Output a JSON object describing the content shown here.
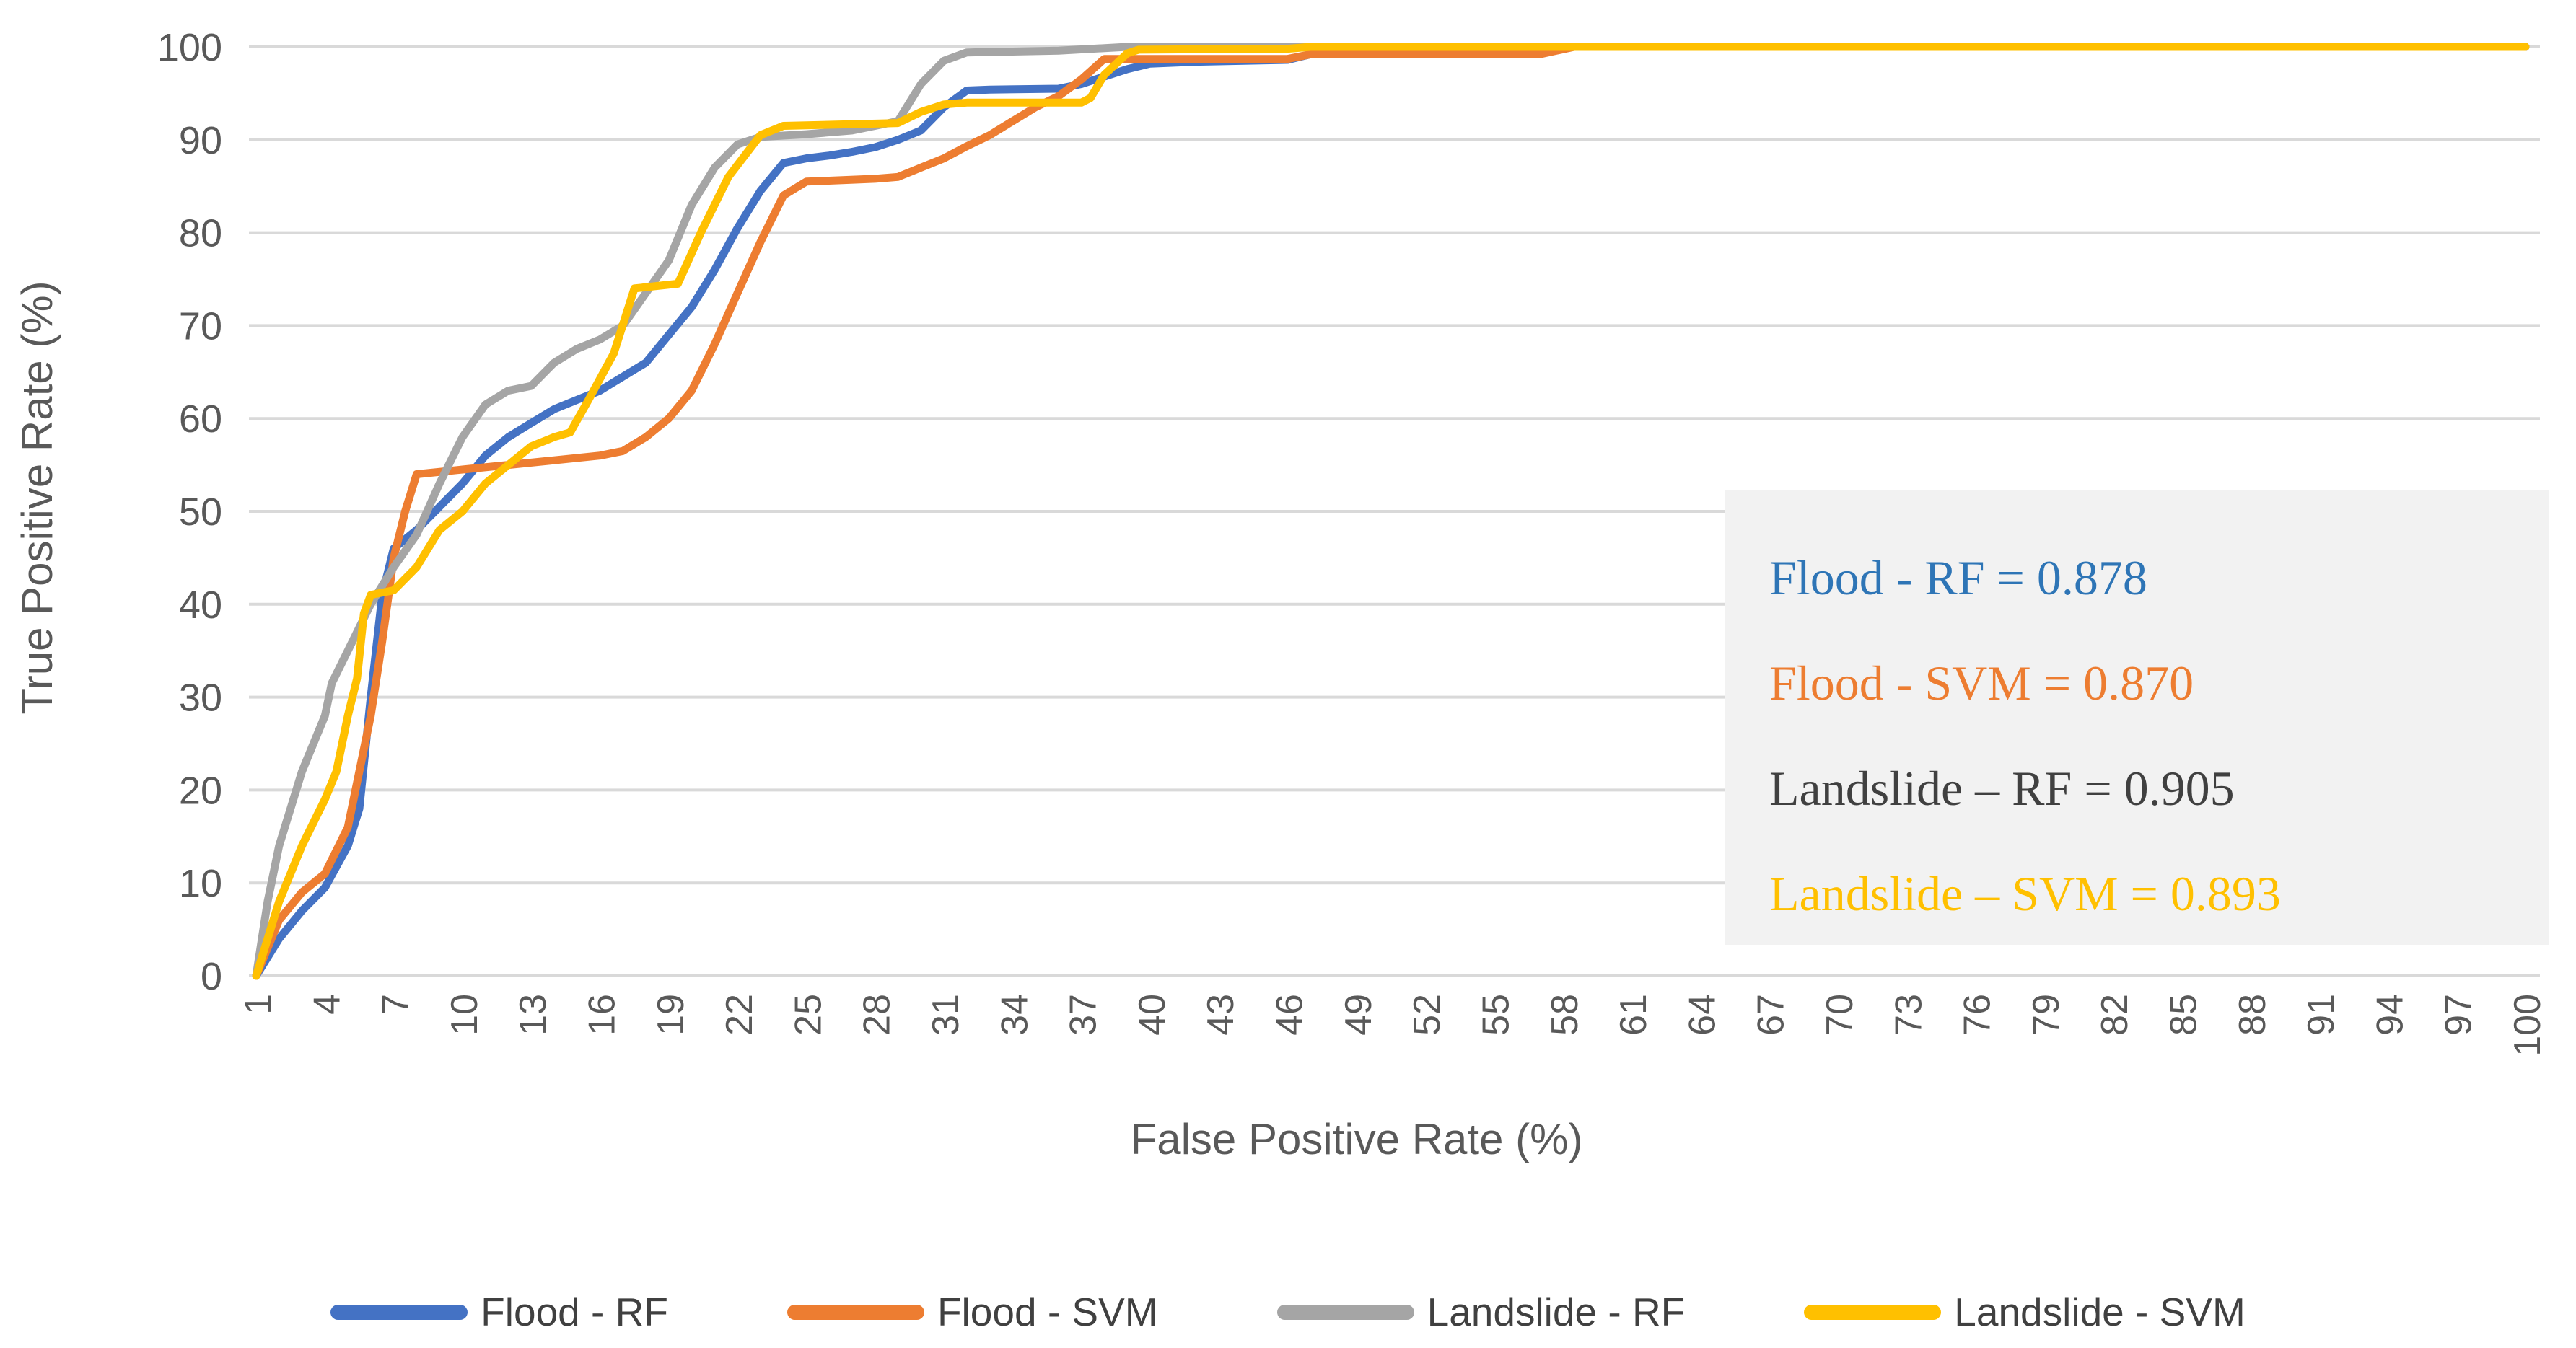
{
  "axes": {
    "x_title": "False Positive Rate (%)",
    "y_title": "True Positive Rate (%)",
    "tick_color": "#595959",
    "gridline_color": "#D9D9D9",
    "background": "#FFFFFF"
  },
  "chart_data": {
    "type": "line",
    "title": "",
    "xlabel": "False Positive Rate (%)",
    "ylabel": "True Positive Rate (%)",
    "xlim": [
      1,
      100
    ],
    "ylim": [
      0,
      100
    ],
    "grid": "horizontal",
    "legend_position": "bottom",
    "x_ticks": [
      1,
      4,
      7,
      10,
      13,
      16,
      19,
      22,
      25,
      28,
      31,
      34,
      37,
      40,
      43,
      46,
      49,
      52,
      55,
      58,
      61,
      64,
      67,
      70,
      73,
      76,
      79,
      82,
      85,
      88,
      91,
      94,
      97,
      100
    ],
    "y_ticks": [
      0,
      10,
      20,
      30,
      40,
      50,
      60,
      70,
      80,
      90,
      100
    ],
    "series": [
      {
        "name": "Flood - RF",
        "color": "#4472C4",
        "auc": 0.878,
        "points": [
          [
            1,
            0
          ],
          [
            2,
            4
          ],
          [
            3,
            7
          ],
          [
            4,
            9.5
          ],
          [
            5,
            14
          ],
          [
            5.5,
            18
          ],
          [
            6,
            30
          ],
          [
            6.5,
            41
          ],
          [
            7,
            46
          ],
          [
            8,
            48
          ],
          [
            9,
            50.5
          ],
          [
            10,
            53
          ],
          [
            11,
            56
          ],
          [
            12,
            58
          ],
          [
            13,
            59.5
          ],
          [
            14,
            61
          ],
          [
            15,
            62
          ],
          [
            16,
            63
          ],
          [
            17,
            64.5
          ],
          [
            18,
            66
          ],
          [
            19,
            69
          ],
          [
            20,
            72
          ],
          [
            21,
            76
          ],
          [
            22,
            80.5
          ],
          [
            23,
            84.5
          ],
          [
            24,
            87.5
          ],
          [
            25,
            88
          ],
          [
            26,
            88.3
          ],
          [
            27,
            88.7
          ],
          [
            28,
            89.2
          ],
          [
            29,
            90
          ],
          [
            30,
            91
          ],
          [
            31,
            93.5
          ],
          [
            32,
            95.3
          ],
          [
            33,
            95.4
          ],
          [
            36,
            95.5
          ],
          [
            37,
            96
          ],
          [
            38,
            96.8
          ],
          [
            39,
            97.6
          ],
          [
            40,
            98.2
          ],
          [
            42,
            98.4
          ],
          [
            46,
            98.6
          ],
          [
            47,
            99.2
          ],
          [
            48,
            99.5
          ],
          [
            52,
            99.6
          ],
          [
            56,
            99.8
          ],
          [
            58,
            100
          ],
          [
            100,
            100
          ]
        ]
      },
      {
        "name": "Flood - SVM",
        "color": "#ED7D31",
        "auc": 0.87,
        "points": [
          [
            1,
            0
          ],
          [
            2,
            6
          ],
          [
            3,
            9
          ],
          [
            4,
            11
          ],
          [
            5,
            16
          ],
          [
            6,
            28
          ],
          [
            6.5,
            36
          ],
          [
            7,
            45
          ],
          [
            7.5,
            50
          ],
          [
            8,
            54
          ],
          [
            10,
            54.5
          ],
          [
            12,
            55
          ],
          [
            14,
            55.5
          ],
          [
            16,
            56
          ],
          [
            17,
            56.5
          ],
          [
            18,
            58
          ],
          [
            19,
            60
          ],
          [
            20,
            63
          ],
          [
            21,
            68
          ],
          [
            22,
            73.5
          ],
          [
            23,
            79
          ],
          [
            24,
            84
          ],
          [
            25,
            85.5
          ],
          [
            28,
            85.8
          ],
          [
            29,
            86
          ],
          [
            30,
            87
          ],
          [
            31,
            88
          ],
          [
            32,
            89.3
          ],
          [
            33,
            90.5
          ],
          [
            34,
            92
          ],
          [
            35,
            93.5
          ],
          [
            36,
            94.7
          ],
          [
            37,
            96.5
          ],
          [
            38,
            98.7
          ],
          [
            46,
            98.7
          ],
          [
            47,
            99.2
          ],
          [
            57,
            99.2
          ],
          [
            58.5,
            100
          ],
          [
            100,
            100
          ]
        ]
      },
      {
        "name": "Landslide - RF",
        "color": "#A5A5A5",
        "auc": 0.905,
        "points": [
          [
            1,
            0
          ],
          [
            1.5,
            8
          ],
          [
            2,
            14
          ],
          [
            3,
            22
          ],
          [
            4,
            28
          ],
          [
            4.3,
            31.5
          ],
          [
            5,
            35
          ],
          [
            6,
            40
          ],
          [
            7,
            44
          ],
          [
            8,
            47.5
          ],
          [
            9,
            53
          ],
          [
            10,
            58
          ],
          [
            11,
            61.5
          ],
          [
            12,
            63
          ],
          [
            13,
            63.5
          ],
          [
            14,
            66
          ],
          [
            15,
            67.5
          ],
          [
            16,
            68.5
          ],
          [
            17,
            70
          ],
          [
            18,
            73.5
          ],
          [
            19,
            77
          ],
          [
            20,
            83
          ],
          [
            21,
            87
          ],
          [
            22,
            89.5
          ],
          [
            23,
            90.3
          ],
          [
            25,
            90.6
          ],
          [
            27,
            91
          ],
          [
            28,
            91.5
          ],
          [
            29,
            92
          ],
          [
            30,
            96
          ],
          [
            31,
            98.5
          ],
          [
            32,
            99.4
          ],
          [
            36,
            99.6
          ],
          [
            39,
            100
          ],
          [
            100,
            100
          ]
        ]
      },
      {
        "name": "Landslide - SVM",
        "color": "#FFC000",
        "auc": 0.893,
        "points": [
          [
            1,
            0
          ],
          [
            2,
            8
          ],
          [
            3,
            14
          ],
          [
            4,
            19
          ],
          [
            4.5,
            22
          ],
          [
            5,
            28
          ],
          [
            5.4,
            32
          ],
          [
            5.7,
            39
          ],
          [
            6,
            41
          ],
          [
            7,
            41.5
          ],
          [
            8,
            44
          ],
          [
            9,
            48
          ],
          [
            10,
            50
          ],
          [
            11,
            53
          ],
          [
            12,
            55
          ],
          [
            13,
            57
          ],
          [
            14,
            58
          ],
          [
            14.7,
            58.5
          ],
          [
            15.5,
            62
          ],
          [
            16.6,
            67
          ],
          [
            17.5,
            74
          ],
          [
            19.4,
            74.5
          ],
          [
            20.4,
            80
          ],
          [
            21.6,
            86
          ],
          [
            23,
            90.5
          ],
          [
            24,
            91.5
          ],
          [
            29,
            91.8
          ],
          [
            30,
            93
          ],
          [
            31,
            93.8
          ],
          [
            32,
            94
          ],
          [
            37,
            94
          ],
          [
            37.4,
            94.5
          ],
          [
            38,
            97
          ],
          [
            39,
            99.3
          ],
          [
            39.5,
            99.7
          ],
          [
            46,
            99.8
          ],
          [
            47,
            100
          ],
          [
            100,
            100
          ]
        ]
      }
    ]
  },
  "auc_box": {
    "background": "#F2F2F2",
    "lines": [
      {
        "text": "Flood - RF = 0.878",
        "color": "#2E75B6"
      },
      {
        "text": "Flood - SVM = 0.870",
        "color": "#ED7D31"
      },
      {
        "text": "Landslide – RF = 0.905",
        "color": "#404040"
      },
      {
        "text": "Landslide – SVM = 0.893",
        "color": "#FFC000"
      }
    ]
  },
  "legend": {
    "items": [
      {
        "label": "Flood - RF",
        "color": "#4472C4"
      },
      {
        "label": "Flood - SVM",
        "color": "#ED7D31"
      },
      {
        "label": "Landslide - RF",
        "color": "#A5A5A5"
      },
      {
        "label": "Landslide - SVM",
        "color": "#FFC000"
      }
    ]
  }
}
